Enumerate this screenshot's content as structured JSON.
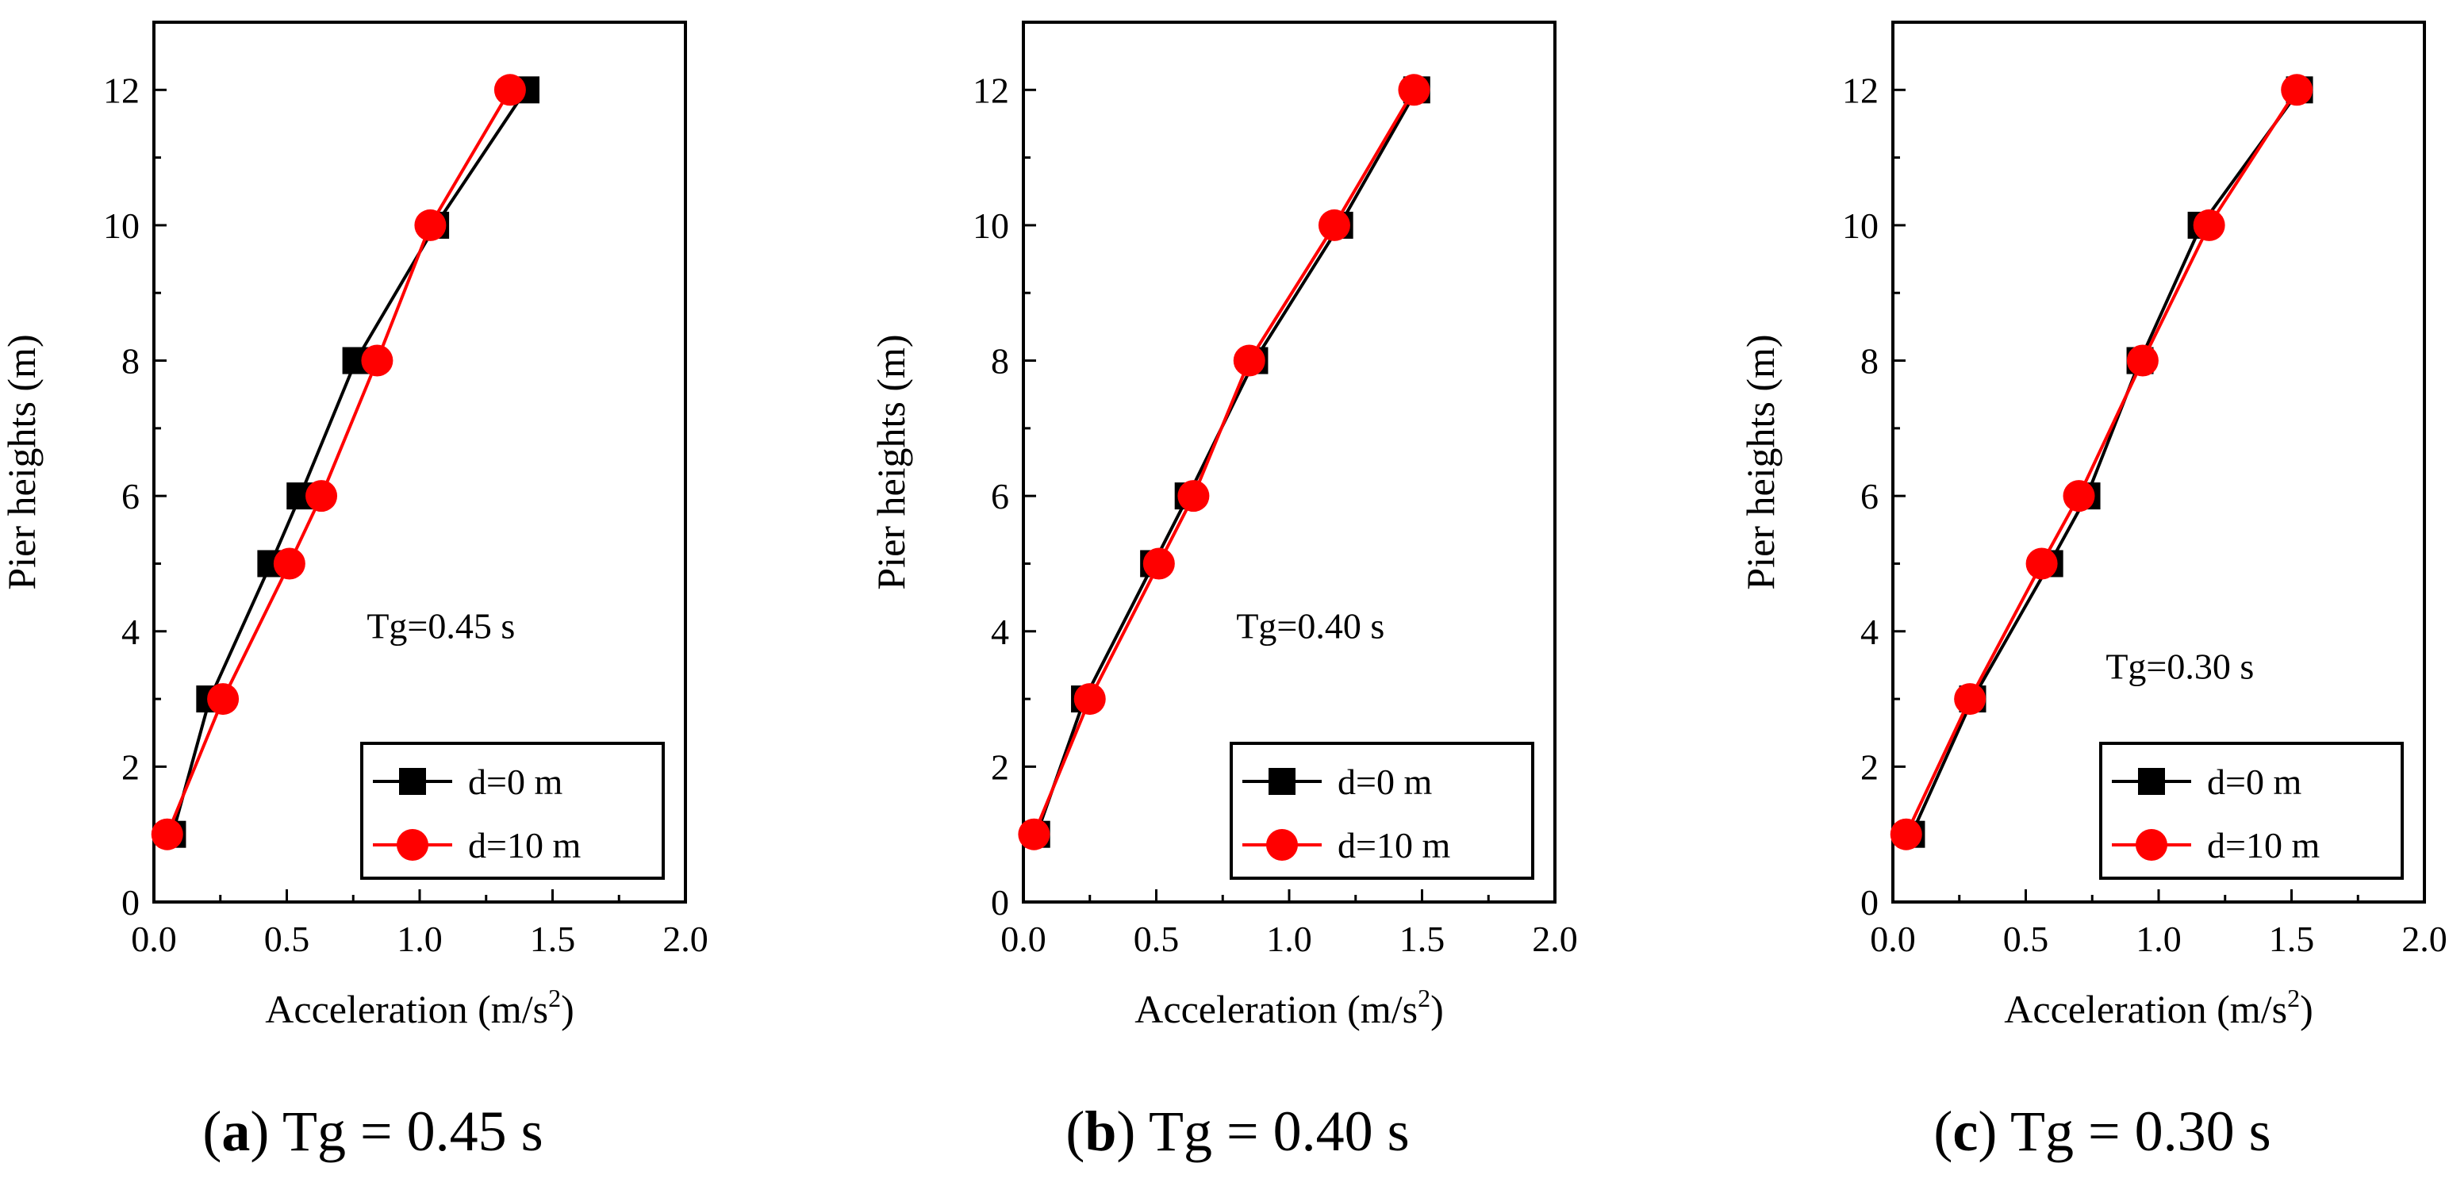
{
  "chart_data": [
    {
      "type": "line",
      "panel_label": "a",
      "caption_text": "Tg = 0.45 s",
      "annotation": "Tg=0.45 s",
      "xlabel_main": "Acceleration (m/s",
      "xlabel_sup": "2",
      "xlabel_end": ")",
      "ylabel": "Pier heights (m)",
      "xlim": [
        0,
        2.0
      ],
      "ylim": [
        0,
        13
      ],
      "xticks": [
        "0.0",
        "0.5",
        "1.0",
        "1.5",
        "2.0"
      ],
      "yticks": [
        "0",
        "2",
        "4",
        "6",
        "8",
        "10",
        "12"
      ],
      "legend": [
        "d=0 m",
        "d=10 m"
      ],
      "series": [
        {
          "name": "d=0 m",
          "color": "#000000",
          "marker": "square",
          "x": [
            0.07,
            0.21,
            0.44,
            0.55,
            0.76,
            1.06,
            1.4
          ],
          "y": [
            1,
            3,
            5,
            6,
            8,
            10,
            12
          ]
        },
        {
          "name": "d=10 m",
          "color": "#ff0000",
          "marker": "circle",
          "x": [
            0.05,
            0.26,
            0.51,
            0.63,
            0.84,
            1.04,
            1.34
          ],
          "y": [
            1,
            3,
            5,
            6,
            8,
            10,
            12
          ]
        }
      ]
    },
    {
      "type": "line",
      "panel_label": "b",
      "caption_text": "Tg = 0.40 s",
      "annotation": "Tg=0.40 s",
      "xlabel_main": "Acceleration (m/s",
      "xlabel_sup": "2",
      "xlabel_end": ")",
      "ylabel": "Pier heights (m)",
      "xlim": [
        0,
        2.0
      ],
      "ylim": [
        0,
        13
      ],
      "xticks": [
        "0.0",
        "0.5",
        "1.0",
        "1.5",
        "2.0"
      ],
      "yticks": [
        "0",
        "2",
        "4",
        "6",
        "8",
        "10",
        "12"
      ],
      "legend": [
        "d=0 m",
        "d=10 m"
      ],
      "series": [
        {
          "name": "d=0 m",
          "color": "#000000",
          "marker": "square",
          "x": [
            0.05,
            0.23,
            0.49,
            0.62,
            0.87,
            1.19,
            1.48
          ],
          "y": [
            1,
            3,
            5,
            6,
            8,
            10,
            12
          ]
        },
        {
          "name": "d=10 m",
          "color": "#ff0000",
          "marker": "circle",
          "x": [
            0.04,
            0.25,
            0.51,
            0.64,
            0.85,
            1.17,
            1.47
          ],
          "y": [
            1,
            3,
            5,
            6,
            8,
            10,
            12
          ]
        }
      ]
    },
    {
      "type": "line",
      "panel_label": "c",
      "caption_text": "Tg = 0.30 s",
      "annotation": "Tg=0.30 s",
      "xlabel_main": "Acceleration (m/s",
      "xlabel_sup": "2",
      "xlabel_end": ")",
      "ylabel": "Pier heights (m)",
      "xlim": [
        0,
        2.0
      ],
      "ylim": [
        0,
        13
      ],
      "xticks": [
        "0.0",
        "0.5",
        "1.0",
        "1.5",
        "2.0"
      ],
      "yticks": [
        "0",
        "2",
        "4",
        "6",
        "8",
        "10",
        "12"
      ],
      "legend": [
        "d=0 m",
        "d=10 m"
      ],
      "series": [
        {
          "name": "d=0 m",
          "color": "#000000",
          "marker": "square",
          "x": [
            0.07,
            0.3,
            0.59,
            0.73,
            0.93,
            1.16,
            1.53
          ],
          "y": [
            1,
            3,
            5,
            6,
            8,
            10,
            12
          ]
        },
        {
          "name": "d=10 m",
          "color": "#ff0000",
          "marker": "circle",
          "x": [
            0.05,
            0.29,
            0.56,
            0.7,
            0.94,
            1.19,
            1.52
          ],
          "y": [
            1,
            3,
            5,
            6,
            8,
            10,
            12
          ]
        }
      ]
    }
  ]
}
